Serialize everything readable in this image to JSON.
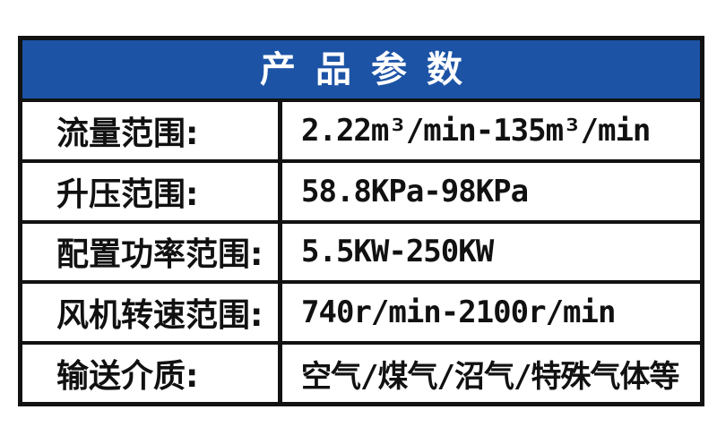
{
  "header": {
    "title": "产品参数"
  },
  "table": {
    "rows": [
      {
        "label": "流量范围:",
        "value": "2.22m³/min-135m³/min"
      },
      {
        "label": "升压范围:",
        "value": "58.8KPa-98KPa"
      },
      {
        "label": "配置功率范围:",
        "value": "5.5KW-250KW"
      },
      {
        "label": "风机转速范围:",
        "value": "740r/min-2100r/min"
      },
      {
        "label": "输送介质:",
        "value": "空气/煤气/沼气/特殊气体等"
      }
    ]
  },
  "colors": {
    "header_bg": "#1c53a5",
    "header_text": "#ffffff",
    "border": "#121212",
    "text": "#111111"
  }
}
